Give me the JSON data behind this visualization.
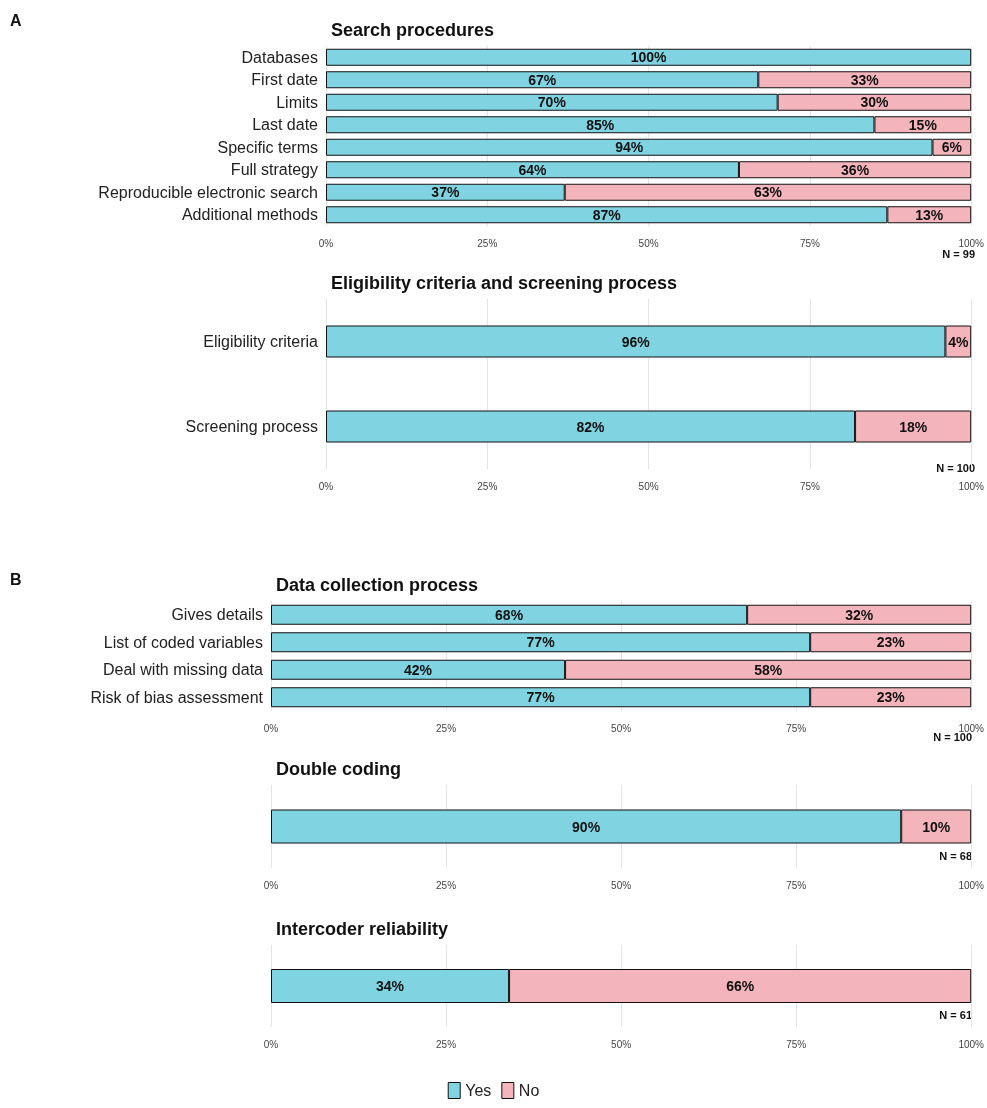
{
  "chart_data": [
    {
      "type": "bar",
      "orientation": "horizontal",
      "stacked": true,
      "title": "Search procedures",
      "annotations": [
        "A",
        "N = 99"
      ],
      "categories": [
        "Databases",
        "First date",
        "Limits",
        "Last date",
        "Specific terms",
        "Full strategy",
        "Reproducible electronic search",
        "Additional methods"
      ],
      "series": [
        {
          "color": "#80d3e1",
          "values": [
            100,
            67,
            70,
            85,
            94,
            64,
            37,
            87
          ],
          "value_labels": [
            "100%",
            "67%",
            "70%",
            "85%",
            "94%",
            "64%",
            "37%",
            "87%"
          ]
        },
        {
          "color": "#f4b4bb",
          "values": [
            null,
            33,
            30,
            15,
            6,
            36,
            63,
            13
          ],
          "value_labels": [
            null,
            "33%",
            "30%",
            "15%",
            "6%",
            "36%",
            "63%",
            "13%"
          ]
        }
      ],
      "xlim": [
        0,
        100
      ],
      "xticks": [
        {
          "value": 0,
          "label": "0%"
        },
        {
          "value": 25,
          "label": "25%"
        },
        {
          "value": 50,
          "label": "50%"
        },
        {
          "value": 75,
          "label": "75%"
        },
        {
          "value": 100,
          "label": "100%"
        }
      ],
      "grid": "x"
    },
    {
      "type": "bar",
      "orientation": "horizontal",
      "stacked": true,
      "title": "Eligibility criteria and screening process",
      "annotations": [
        "N = 100"
      ],
      "categories": [
        "Eligibility criteria",
        "Screening process"
      ],
      "series": [
        {
          "color": "#80d3e1",
          "values": [
            96,
            82
          ],
          "value_labels": [
            "96%",
            "82%"
          ]
        },
        {
          "color": "#f4b4bb",
          "values": [
            4,
            18
          ],
          "value_labels": [
            "4%",
            "18%"
          ]
        }
      ],
      "xlim": [
        0,
        100
      ],
      "xticks": [
        {
          "value": 0,
          "label": "0%"
        },
        {
          "value": 25,
          "label": "25%"
        },
        {
          "value": 50,
          "label": "50%"
        },
        {
          "value": 75,
          "label": "75%"
        },
        {
          "value": 100,
          "label": "100%"
        }
      ],
      "grid": "x"
    },
    {
      "type": "bar",
      "orientation": "horizontal",
      "stacked": true,
      "title": "Data collection process",
      "annotations": [
        "B",
        "N = 100"
      ],
      "categories": [
        "Gives details",
        "List of coded variables",
        "Deal with missing data",
        "Risk of bias assessment"
      ],
      "series": [
        {
          "color": "#80d3e1",
          "values": [
            68,
            77,
            42,
            77
          ],
          "value_labels": [
            "68%",
            "77%",
            "42%",
            "77%"
          ]
        },
        {
          "color": "#f4b4bb",
          "values": [
            32,
            23,
            58,
            23
          ],
          "value_labels": [
            "32%",
            "23%",
            "58%",
            "23%"
          ]
        }
      ],
      "xlim": [
        0,
        100
      ],
      "xticks": [
        {
          "value": 0,
          "label": "0%"
        },
        {
          "value": 25,
          "label": "25%"
        },
        {
          "value": 50,
          "label": "50%"
        },
        {
          "value": 75,
          "label": "75%"
        },
        {
          "value": 100,
          "label": "100%"
        }
      ],
      "grid": "x"
    },
    {
      "type": "bar",
      "orientation": "horizontal",
      "stacked": true,
      "title": "Double coding",
      "annotations": [
        "N = 68"
      ],
      "categories": [
        null
      ],
      "series": [
        {
          "color": "#80d3e1",
          "values": [
            90
          ],
          "value_labels": [
            "90%"
          ]
        },
        {
          "color": "#f4b4bb",
          "values": [
            10
          ],
          "value_labels": [
            "10%"
          ]
        }
      ],
      "xlim": [
        0,
        100
      ],
      "xticks": [
        {
          "value": 0,
          "label": "0%"
        },
        {
          "value": 25,
          "label": "25%"
        },
        {
          "value": 50,
          "label": "50%"
        },
        {
          "value": 75,
          "label": "75%"
        },
        {
          "value": 100,
          "label": "100%"
        }
      ],
      "grid": "x"
    },
    {
      "type": "bar",
      "orientation": "horizontal",
      "stacked": true,
      "title": "Intercoder reliability",
      "annotations": [
        "N = 61"
      ],
      "legend": "bottom",
      "categories": [
        null
      ],
      "series": [
        {
          "name": "Yes",
          "color": "#80d3e1",
          "values": [
            34
          ],
          "value_labels": [
            "34%"
          ]
        },
        {
          "name": "No",
          "color": "#f4b4bb",
          "values": [
            66
          ],
          "value_labels": [
            "66%"
          ]
        }
      ],
      "xlim": [
        0,
        100
      ],
      "xticks": [
        {
          "value": 0,
          "label": "0%"
        },
        {
          "value": 25,
          "label": "25%"
        },
        {
          "value": 50,
          "label": "50%"
        },
        {
          "value": 75,
          "label": "75%"
        },
        {
          "value": 100,
          "label": "100%"
        }
      ],
      "grid": "x"
    }
  ]
}
